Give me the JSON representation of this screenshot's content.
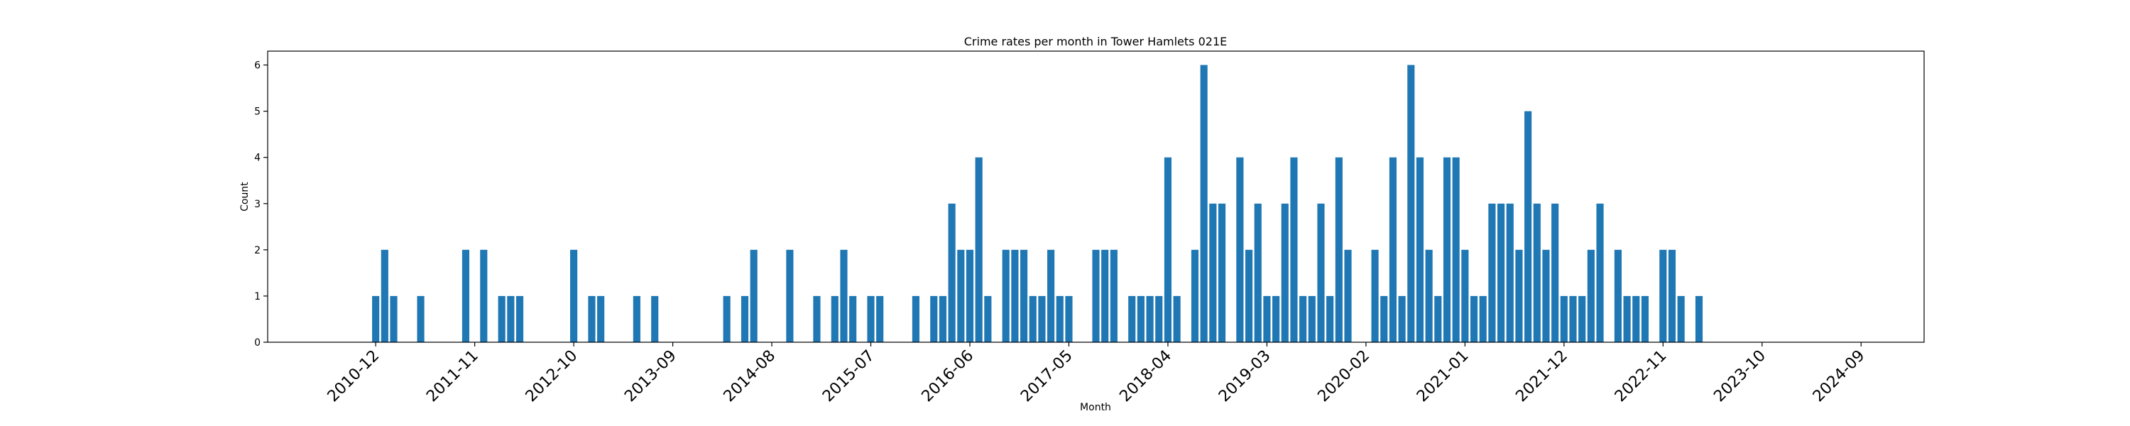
{
  "chart_data": {
    "type": "bar",
    "title": "Crime rates per month in Tower Hamlets 021E",
    "xlabel": "Month",
    "ylabel": "Count",
    "ylim": [
      0,
      6.3
    ],
    "yticks": [
      0,
      1,
      2,
      3,
      4,
      5,
      6
    ],
    "xticks": [
      "2010-12",
      "2011-11",
      "2012-10",
      "2013-09",
      "2014-08",
      "2015-07",
      "2016-06",
      "2017-05",
      "2018-04",
      "2019-03",
      "2020-02",
      "2021-01",
      "2021-12",
      "2022-11",
      "2023-10",
      "2024-09"
    ],
    "xlim": [
      "2009-12",
      "2025-04"
    ],
    "bar_color": "#1f77b4",
    "grid": false,
    "x": [
      "2010-12",
      "2011-01",
      "2011-02",
      "2011-05",
      "2011-10",
      "2011-12",
      "2012-02",
      "2012-03",
      "2012-04",
      "2012-10",
      "2012-12",
      "2013-01",
      "2013-05",
      "2013-07",
      "2014-03",
      "2014-05",
      "2014-06",
      "2014-10",
      "2015-01",
      "2015-03",
      "2015-04",
      "2015-05",
      "2015-07",
      "2015-08",
      "2015-12",
      "2016-02",
      "2016-03",
      "2016-04",
      "2016-05",
      "2016-06",
      "2016-07",
      "2016-08",
      "2016-10",
      "2016-11",
      "2016-12",
      "2017-01",
      "2017-02",
      "2017-03",
      "2017-04",
      "2017-05",
      "2017-08",
      "2017-09",
      "2017-10",
      "2017-12",
      "2018-01",
      "2018-02",
      "2018-03",
      "2018-04",
      "2018-05",
      "2018-07",
      "2018-08",
      "2018-09",
      "2018-10",
      "2018-12",
      "2019-01",
      "2019-02",
      "2019-03",
      "2019-04",
      "2019-05",
      "2019-06",
      "2019-07",
      "2019-08",
      "2019-09",
      "2019-10",
      "2019-11",
      "2019-12",
      "2020-03",
      "2020-04",
      "2020-05",
      "2020-06",
      "2020-07",
      "2020-08",
      "2020-09",
      "2020-10",
      "2020-11",
      "2020-12",
      "2021-01",
      "2021-02",
      "2021-03",
      "2021-04",
      "2021-05",
      "2021-06",
      "2021-07",
      "2021-08",
      "2021-09",
      "2021-10",
      "2021-11",
      "2021-12",
      "2022-01",
      "2022-02",
      "2022-03",
      "2022-04",
      "2022-06",
      "2022-07",
      "2022-08",
      "2022-09",
      "2022-11",
      "2022-12",
      "2023-01",
      "2023-03"
    ],
    "values": [
      1,
      2,
      1,
      1,
      2,
      2,
      1,
      1,
      1,
      2,
      1,
      1,
      1,
      1,
      1,
      1,
      2,
      2,
      1,
      1,
      2,
      1,
      1,
      1,
      1,
      1,
      1,
      3,
      2,
      2,
      4,
      1,
      2,
      2,
      2,
      1,
      1,
      2,
      1,
      1,
      2,
      2,
      2,
      1,
      1,
      1,
      1,
      4,
      1,
      2,
      6,
      3,
      3,
      4,
      2,
      3,
      1,
      1,
      3,
      4,
      1,
      1,
      3,
      1,
      4,
      2,
      2,
      1,
      4,
      1,
      6,
      4,
      2,
      1,
      4,
      4,
      2,
      1,
      1,
      3,
      3,
      3,
      2,
      5,
      3,
      2,
      3,
      1,
      1,
      1,
      2,
      3,
      2,
      1,
      1,
      1,
      2,
      2,
      1,
      1
    ]
  }
}
